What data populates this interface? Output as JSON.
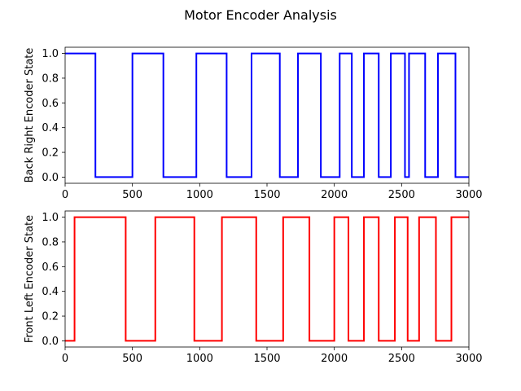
{
  "figure": {
    "title": "Motor Encoder Analysis"
  },
  "chart_data": [
    {
      "type": "line",
      "title": "",
      "xlabel": "",
      "ylabel": "Back Right Encoder State",
      "xlim": [
        0,
        3000
      ],
      "ylim": [
        -0.05,
        1.05
      ],
      "xticks": [
        0,
        500,
        1000,
        1500,
        2000,
        2500,
        3000
      ],
      "yticks": [
        0.0,
        0.2,
        0.4,
        0.6,
        0.8,
        1.0
      ],
      "xtick_labels": [
        "0",
        "500",
        "1000",
        "1500",
        "2000",
        "2500",
        "3000"
      ],
      "ytick_labels": [
        "0.0",
        "0.2",
        "0.4",
        "0.6",
        "0.8",
        "1.0"
      ],
      "grid": false,
      "series": [
        {
          "color": "#0000ff",
          "step": true,
          "x": [
            0,
            225,
            225,
            500,
            500,
            730,
            730,
            975,
            975,
            1200,
            1200,
            1385,
            1385,
            1595,
            1595,
            1730,
            1730,
            1900,
            1900,
            2040,
            2040,
            2130,
            2130,
            2220,
            2220,
            2330,
            2330,
            2420,
            2420,
            2525,
            2525,
            2555,
            2555,
            2675,
            2675,
            2770,
            2770,
            2900,
            2900,
            3000
          ],
          "y": [
            1,
            1,
            0,
            0,
            1,
            1,
            0,
            0,
            1,
            1,
            0,
            0,
            1,
            1,
            0,
            0,
            1,
            1,
            0,
            0,
            1,
            1,
            0,
            0,
            1,
            1,
            0,
            0,
            1,
            1,
            0,
            0,
            1,
            1,
            0,
            0,
            1,
            1,
            0,
            0
          ]
        }
      ]
    },
    {
      "type": "line",
      "title": "",
      "xlabel": "",
      "ylabel": "Front Left Encoder State",
      "xlim": [
        0,
        3000
      ],
      "ylim": [
        -0.05,
        1.05
      ],
      "xticks": [
        0,
        500,
        1000,
        1500,
        2000,
        2500,
        3000
      ],
      "yticks": [
        0.0,
        0.2,
        0.4,
        0.6,
        0.8,
        1.0
      ],
      "xtick_labels": [
        "0",
        "500",
        "1000",
        "1500",
        "2000",
        "2500",
        "3000"
      ],
      "ytick_labels": [
        "0.0",
        "0.2",
        "0.4",
        "0.6",
        "0.8",
        "1.0"
      ],
      "grid": false,
      "series": [
        {
          "color": "#ff0000",
          "step": true,
          "x": [
            0,
            70,
            70,
            450,
            450,
            670,
            670,
            960,
            960,
            1165,
            1165,
            1420,
            1420,
            1620,
            1620,
            1815,
            1815,
            2000,
            2000,
            2105,
            2105,
            2220,
            2220,
            2330,
            2330,
            2450,
            2450,
            2545,
            2545,
            2630,
            2630,
            2755,
            2755,
            2870,
            2870,
            3000
          ],
          "y": [
            0,
            0,
            1,
            1,
            0,
            0,
            1,
            1,
            0,
            0,
            1,
            1,
            0,
            0,
            1,
            1,
            0,
            0,
            1,
            1,
            0,
            0,
            1,
            1,
            0,
            0,
            1,
            1,
            0,
            0,
            1,
            1,
            0,
            0,
            1,
            1
          ]
        }
      ]
    }
  ]
}
